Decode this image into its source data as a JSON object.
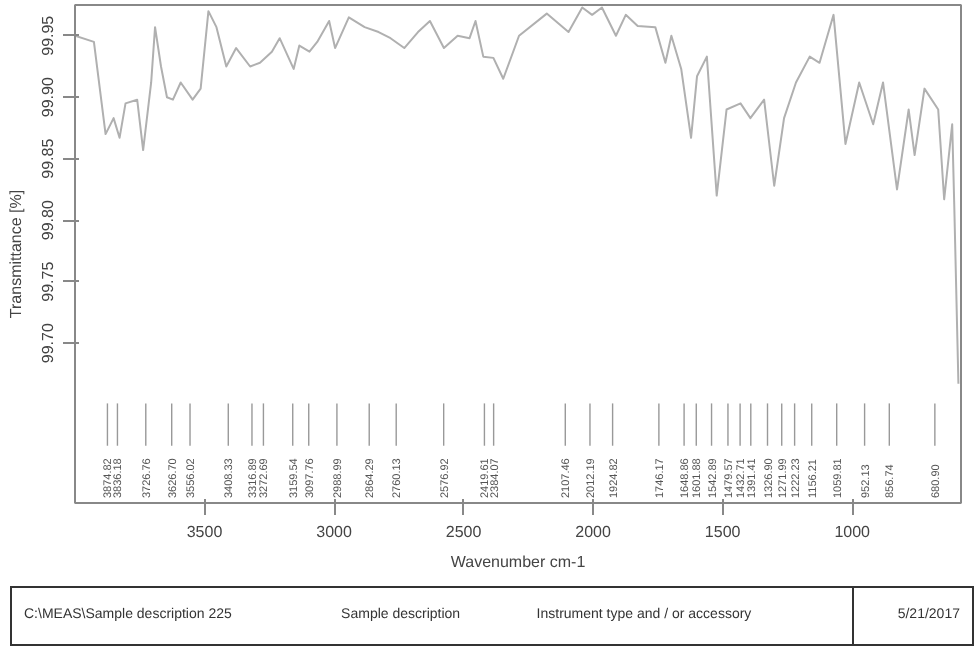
{
  "chart_data": {
    "type": "line",
    "xlabel": "Wavenumber cm-1",
    "ylabel": "Transmittance [%]",
    "xlim": [
      4000,
      580
    ],
    "ylim": [
      99.57,
      99.975
    ],
    "xticks": [
      3500,
      3000,
      2500,
      2000,
      1500,
      1000
    ],
    "yticks": [
      {
        "value": 99.7,
        "label": "99.70"
      },
      99.75,
      {
        "value": 99.8,
        "label": "99.80"
      },
      99.85,
      {
        "value": 99.9,
        "label": "99.90"
      },
      99.95
    ],
    "grid": false,
    "marker": "none",
    "line_style": "solid",
    "x": [
      4000,
      3927,
      3882,
      3851,
      3828,
      3805,
      3760,
      3737,
      3706,
      3691,
      3668,
      3645,
      3622,
      3592,
      3546,
      3515,
      3485,
      3454,
      3416,
      3378,
      3324,
      3286,
      3240,
      3210,
      3156,
      3134,
      3095,
      3065,
      3019,
      2996,
      2943,
      2882,
      2828,
      2782,
      2729,
      2676,
      2630,
      2576,
      2523,
      2477,
      2454,
      2424,
      2385,
      2347,
      2286,
      2179,
      2095,
      2042,
      2004,
      1966,
      1912,
      1874,
      1828,
      1760,
      1721,
      1698,
      1660,
      1622,
      1599,
      1561,
      1523,
      1485,
      1431,
      1393,
      1340,
      1301,
      1263,
      1217,
      1164,
      1126,
      1072,
      1026,
      973,
      919,
      881,
      827,
      782,
      759,
      721,
      668,
      645,
      614,
      606,
      590
    ],
    "series": [
      {
        "color": "#b0b0b0",
        "values": [
          99.95,
          99.945,
          99.87,
          99.883,
          99.867,
          99.895,
          99.898,
          99.857,
          99.912,
          99.957,
          99.925,
          99.9,
          99.898,
          99.912,
          99.898,
          99.907,
          99.97,
          99.957,
          99.925,
          99.94,
          99.925,
          99.928,
          99.937,
          99.948,
          99.923,
          99.942,
          99.937,
          99.945,
          99.962,
          99.94,
          99.965,
          99.957,
          99.953,
          99.948,
          99.94,
          99.953,
          99.962,
          99.94,
          99.95,
          99.948,
          99.962,
          99.933,
          99.932,
          99.915,
          99.95,
          99.968,
          99.953,
          99.973,
          99.967,
          99.973,
          99.95,
          99.967,
          99.958,
          99.957,
          99.928,
          99.95,
          99.923,
          99.867,
          99.917,
          99.933,
          99.82,
          99.89,
          99.895,
          99.883,
          99.898,
          99.828,
          99.883,
          99.912,
          99.933,
          99.928,
          99.967,
          99.862,
          99.912,
          99.878,
          99.912,
          99.825,
          99.89,
          99.853,
          99.907,
          99.89,
          99.817,
          99.878,
          99.812,
          99.667
        ]
      }
    ],
    "ref_lines": [
      {
        "axis": "x",
        "value": 3874.82,
        "label": "3874.82"
      },
      {
        "axis": "x",
        "value": 3836.18,
        "label": "3836.18"
      },
      {
        "axis": "x",
        "value": 3726.76,
        "label": "3726.76"
      },
      {
        "axis": "x",
        "value": 3626.7,
        "label": "3626.70"
      },
      {
        "axis": "x",
        "value": 3556.02,
        "label": "3556.02"
      },
      {
        "axis": "x",
        "value": 3408.33,
        "label": "3408.33"
      },
      {
        "axis": "x",
        "value": 3316.89,
        "label": "3316.89"
      },
      {
        "axis": "x",
        "value": 3272.69,
        "label": "3272.69"
      },
      {
        "axis": "x",
        "value": 3159.54,
        "label": "3159.54"
      },
      {
        "axis": "x",
        "value": 3097.76,
        "label": "3097.76"
      },
      {
        "axis": "x",
        "value": 2988.99,
        "label": "2988.99"
      },
      {
        "axis": "x",
        "value": 2864.29,
        "label": "2864.29"
      },
      {
        "axis": "x",
        "value": 2760.13,
        "label": "2760.13"
      },
      {
        "axis": "x",
        "value": 2576.92,
        "label": "2576.92"
      },
      {
        "axis": "x",
        "value": 2419.61,
        "label": "2419.61"
      },
      {
        "axis": "x",
        "value": 2384.07,
        "label": "2384.07"
      },
      {
        "axis": "x",
        "value": 2107.46,
        "label": "2107.46"
      },
      {
        "axis": "x",
        "value": 2012.19,
        "label": "2012.19"
      },
      {
        "axis": "x",
        "value": 1924.82,
        "label": "1924.82"
      },
      {
        "axis": "x",
        "value": 1746.17,
        "label": "1746.17"
      },
      {
        "axis": "x",
        "value": 1648.86,
        "label": "1648.86"
      },
      {
        "axis": "x",
        "value": 1601.88,
        "label": "1601.88"
      },
      {
        "axis": "x",
        "value": 1542.89,
        "label": "1542.89"
      },
      {
        "axis": "x",
        "value": 1479.57,
        "label": "1479.57"
      },
      {
        "axis": "x",
        "value": 1432.71,
        "label": "1432.71"
      },
      {
        "axis": "x",
        "value": 1391.41,
        "label": "1391.41"
      },
      {
        "axis": "x",
        "value": 1326.9,
        "label": "1326.90"
      },
      {
        "axis": "x",
        "value": 1271.99,
        "label": "1271.99"
      },
      {
        "axis": "x",
        "value": 1222.23,
        "label": "1222.23"
      },
      {
        "axis": "x",
        "value": 1156.21,
        "label": "1156.21"
      },
      {
        "axis": "x",
        "value": 1059.81,
        "label": "1059.81"
      },
      {
        "axis": "x",
        "value": 952.13,
        "label": "952.13"
      },
      {
        "axis": "x",
        "value": 856.74,
        "label": "856.74"
      },
      {
        "axis": "x",
        "value": 680.9,
        "label": "680.90"
      }
    ],
    "annotations": [
      "C:\\MEAS\\Sample description 225",
      "Sample description",
      "Instrument type and / or accessory",
      "5/21/2017"
    ]
  }
}
